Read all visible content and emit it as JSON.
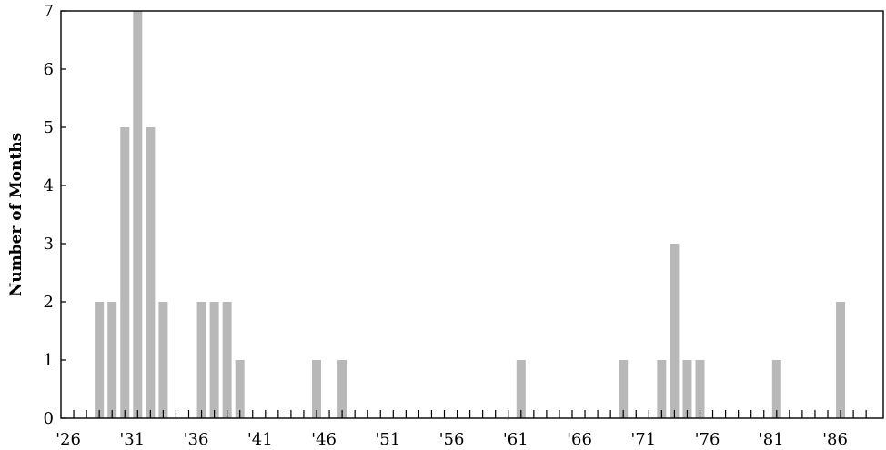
{
  "chart_data": {
    "type": "bar",
    "title": "",
    "xlabel": "",
    "ylabel": "Number of Months",
    "xlim": [
      1926,
      1989
    ],
    "ylim": [
      0,
      7
    ],
    "y_ticks": [
      "0",
      "1",
      "2",
      "3",
      "4",
      "5",
      "6",
      "7"
    ],
    "x_tick_labels": [
      {
        "year": 1926,
        "label": "'26"
      },
      {
        "year": 1931,
        "label": "'31"
      },
      {
        "year": 1936,
        "label": "'36"
      },
      {
        "year": 1941,
        "label": "'41"
      },
      {
        "year": 1946,
        "label": "'46"
      },
      {
        "year": 1951,
        "label": "'51"
      },
      {
        "year": 1956,
        "label": "'56"
      },
      {
        "year": 1961,
        "label": "'61"
      },
      {
        "year": 1966,
        "label": "'66"
      },
      {
        "year": 1971,
        "label": "'71"
      },
      {
        "year": 1976,
        "label": "'76"
      },
      {
        "year": 1981,
        "label": "'81"
      },
      {
        "year": 1986,
        "label": "'86"
      }
    ],
    "bar_color": "#b8b8b8",
    "grid": false,
    "bars": [
      {
        "year": 1929,
        "value": 2
      },
      {
        "year": 1930,
        "value": 2
      },
      {
        "year": 1931,
        "value": 5
      },
      {
        "year": 1932,
        "value": 7
      },
      {
        "year": 1933,
        "value": 5
      },
      {
        "year": 1934,
        "value": 2
      },
      {
        "year": 1937,
        "value": 2
      },
      {
        "year": 1938,
        "value": 2
      },
      {
        "year": 1939,
        "value": 2
      },
      {
        "year": 1940,
        "value": 1
      },
      {
        "year": 1946,
        "value": 1
      },
      {
        "year": 1948,
        "value": 1
      },
      {
        "year": 1962,
        "value": 1
      },
      {
        "year": 1970,
        "value": 1
      },
      {
        "year": 1973,
        "value": 1
      },
      {
        "year": 1974,
        "value": 3
      },
      {
        "year": 1975,
        "value": 1
      },
      {
        "year": 1976,
        "value": 1
      },
      {
        "year": 1982,
        "value": 1
      },
      {
        "year": 1987,
        "value": 2
      }
    ]
  }
}
